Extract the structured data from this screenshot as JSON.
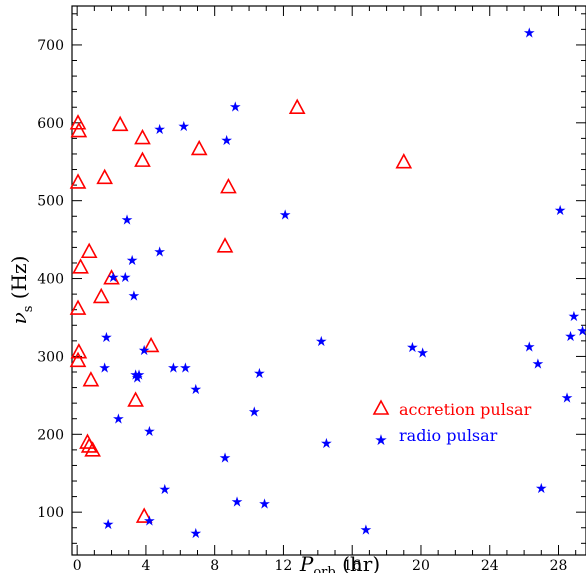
{
  "chart_data": {
    "type": "scatter",
    "title": "",
    "xlabel": "P_orb (hr)",
    "xlabel_main": "P",
    "xlabel_sub": "orb",
    "xlabel_unit": " (hr)",
    "ylabel": "ν_s (Hz)",
    "ylabel_main": "ν",
    "ylabel_sub": "s",
    "ylabel_unit": " (Hz)",
    "xlim": [
      -0.3,
      29.6
    ],
    "ylim": [
      45,
      750
    ],
    "xticks": [
      0,
      4,
      8,
      12,
      16,
      20,
      24,
      28
    ],
    "yticks": [
      100,
      200,
      300,
      400,
      500,
      600,
      700
    ],
    "legend_position": "lower-right",
    "series": [
      {
        "name": "accretion pulsar",
        "marker": "triangle-open",
        "color": "#ff0000",
        "points": [
          [
            0.05,
            600
          ],
          [
            0.1,
            590
          ],
          [
            0.05,
            524
          ],
          [
            0.2,
            415
          ],
          [
            0.7,
            435
          ],
          [
            0.05,
            362
          ],
          [
            0.1,
            306
          ],
          [
            0.05,
            295
          ],
          [
            0.8,
            270
          ],
          [
            1.4,
            377
          ],
          [
            2.0,
            401
          ],
          [
            1.6,
            530
          ],
          [
            2.5,
            598
          ],
          [
            3.8,
            581
          ],
          [
            3.8,
            552
          ],
          [
            7.1,
            567
          ],
          [
            8.8,
            518
          ],
          [
            8.6,
            442
          ],
          [
            12.8,
            620
          ],
          [
            19.0,
            550
          ],
          [
            4.3,
            314
          ],
          [
            3.4,
            244
          ],
          [
            0.6,
            190
          ],
          [
            0.7,
            185
          ],
          [
            0.9,
            180
          ],
          [
            3.9,
            95
          ]
        ]
      },
      {
        "name": "radio pulsar",
        "marker": "star",
        "color": "#0000ff",
        "points": [
          [
            26.3,
            716
          ],
          [
            9.2,
            621
          ],
          [
            6.2,
            596
          ],
          [
            4.8,
            592
          ],
          [
            8.7,
            578
          ],
          [
            12.1,
            482
          ],
          [
            28.1,
            488
          ],
          [
            2.9,
            476
          ],
          [
            4.8,
            435
          ],
          [
            3.2,
            424
          ],
          [
            2.1,
            402
          ],
          [
            2.8,
            402
          ],
          [
            3.3,
            378
          ],
          [
            28.9,
            352
          ],
          [
            29.4,
            333
          ],
          [
            28.7,
            326
          ],
          [
            1.7,
            325
          ],
          [
            14.2,
            320
          ],
          [
            19.5,
            312
          ],
          [
            20.1,
            305
          ],
          [
            26.3,
            313
          ],
          [
            3.9,
            308
          ],
          [
            1.6,
            286
          ],
          [
            5.6,
            286
          ],
          [
            6.3,
            286
          ],
          [
            26.8,
            291
          ],
          [
            10.6,
            279
          ],
          [
            3.4,
            277
          ],
          [
            3.6,
            277
          ],
          [
            3.5,
            273
          ],
          [
            6.9,
            258
          ],
          [
            28.5,
            247
          ],
          [
            10.3,
            229
          ],
          [
            2.4,
            220
          ],
          [
            4.2,
            204
          ],
          [
            14.5,
            189
          ],
          [
            8.6,
            170
          ],
          [
            27.0,
            131
          ],
          [
            5.1,
            130
          ],
          [
            9.3,
            114
          ],
          [
            10.9,
            111
          ],
          [
            1.8,
            85
          ],
          [
            4.2,
            89
          ],
          [
            6.9,
            73
          ],
          [
            16.8,
            78
          ]
        ]
      }
    ]
  }
}
